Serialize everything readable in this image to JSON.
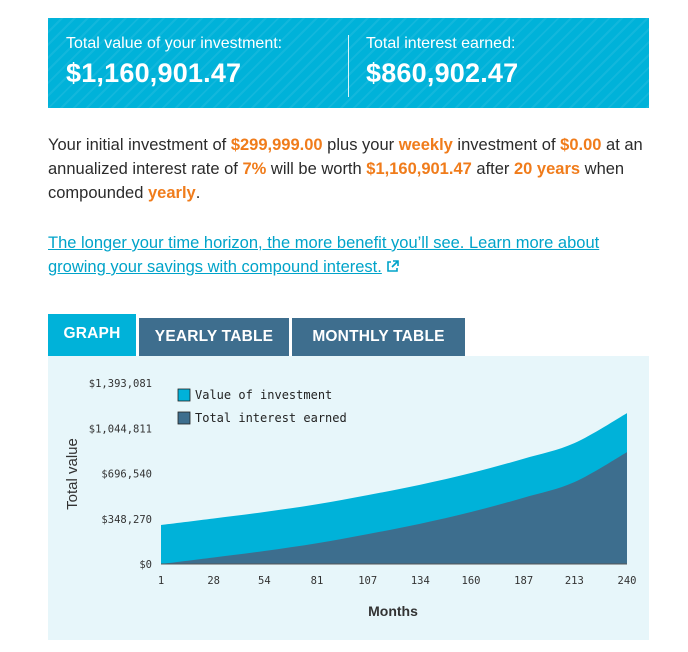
{
  "summary": {
    "total_value_label": "Total value of your investment:",
    "total_value": "$1,160,901.47",
    "interest_label": "Total interest earned:",
    "interest_value": "$860,902.47"
  },
  "description": {
    "p1": "Your initial investment of ",
    "initial": "$299,999.00",
    "p2": " plus your ",
    "frequency": "weekly",
    "p3": " investment of ",
    "contribution": "$0.00",
    "p4": " at an annualized interest rate of ",
    "rate": "7%",
    "p5": " will be worth ",
    "final": "$1,160,901.47",
    "p6": " after ",
    "years": "20 years",
    "p7": " when compounded ",
    "compounding": "yearly",
    "p8": "."
  },
  "learn_more": "The longer your time horizon, the more benefit you’ll see. Learn more about growing your savings with compound interest.",
  "tabs": {
    "graph": "GRAPH",
    "yearly": "YEARLY TABLE",
    "monthly": "MONTHLY TABLE"
  },
  "colors": {
    "value_series": "#00b2d9",
    "interest_series": "#3d6e8e",
    "highlight": "#f07c1b",
    "link": "#00a3c9"
  },
  "icons": {
    "external_link": "external-link-icon"
  },
  "chart_data": {
    "type": "area",
    "xlabel": "Months",
    "ylabel": "Total value",
    "x_ticks": [
      1,
      28,
      54,
      81,
      107,
      134,
      160,
      187,
      213,
      240
    ],
    "y_ticks": [
      "$0",
      "$348,270",
      "$696,540",
      "$1,044,811",
      "$1,393,081"
    ],
    "xlim": [
      1,
      240
    ],
    "ylim": [
      0,
      1393081
    ],
    "legend_position": "top-left",
    "series": [
      {
        "name": "Value of investment",
        "color": "#00b2d9",
        "x": [
          1,
          28,
          54,
          81,
          107,
          134,
          160,
          187,
          213,
          240
        ],
        "values": [
          299999,
          350000,
          400000,
          460000,
          530000,
          610000,
          700000,
          810000,
          930000,
          1160901.47
        ]
      },
      {
        "name": "Total interest earned",
        "color": "#3d6e8e",
        "x": [
          1,
          28,
          54,
          81,
          107,
          134,
          160,
          187,
          213,
          240
        ],
        "values": [
          0,
          50000,
          100000,
          160000,
          230000,
          310000,
          400000,
          510000,
          630000,
          860902.47
        ]
      }
    ]
  }
}
